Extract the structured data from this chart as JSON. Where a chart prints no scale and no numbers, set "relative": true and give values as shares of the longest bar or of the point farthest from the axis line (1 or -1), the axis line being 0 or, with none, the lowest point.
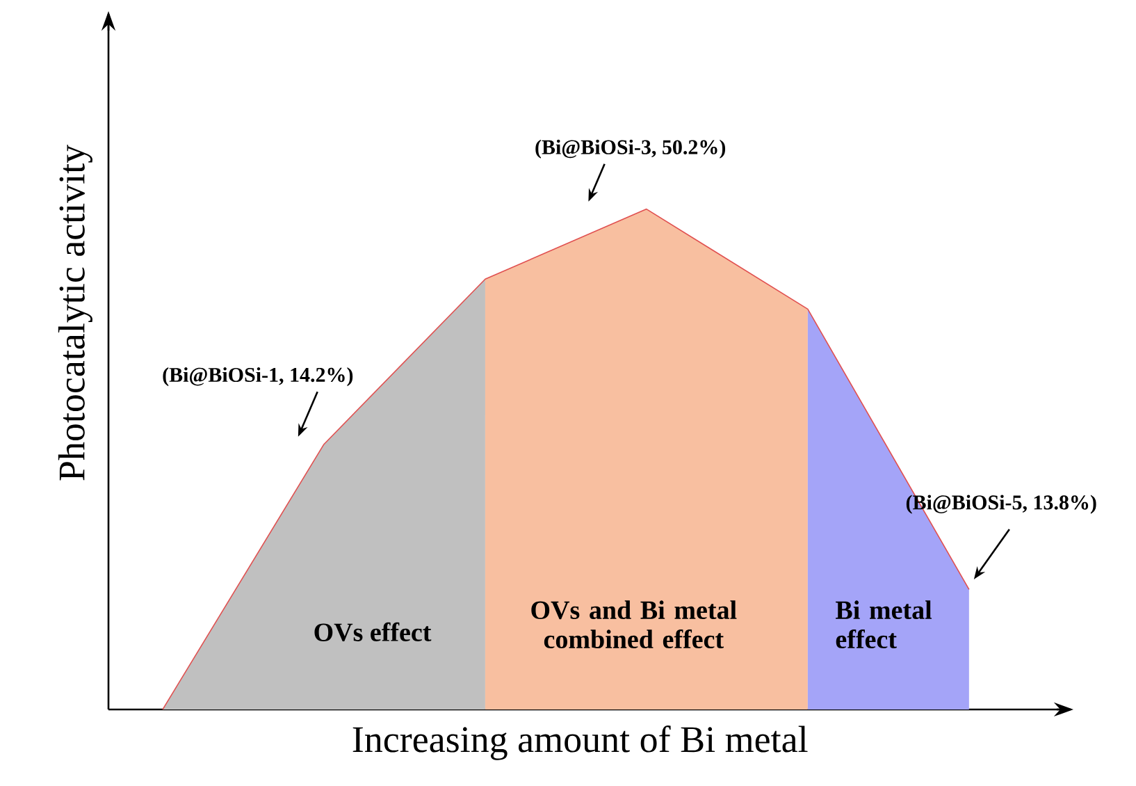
{
  "chart_data": {
    "type": "area",
    "relative": true,
    "xlabel": "Increasing amount of Bi metal",
    "ylabel": "Photocatalytic activity",
    "categories": [
      null,
      null,
      null,
      null,
      null,
      null
    ],
    "series": [
      {
        "color": "#c0c0c0",
        "values": [
          0,
          0.53,
          0.86,
          null,
          null,
          null
        ]
      },
      {
        "color": "#f8bfa0",
        "values": [
          null,
          null,
          0.86,
          1,
          0.8,
          null
        ]
      },
      {
        "color": "#a4a4f8",
        "values": [
          null,
          null,
          null,
          null,
          0.8,
          0.24
        ]
      },
      {
        "type": "line",
        "color": "#e05050",
        "values": [
          0,
          0.53,
          0.86,
          1,
          0.8,
          0.24
        ]
      }
    ],
    "annotations": [
      "(Bi@BiOSi-1, 14.2%)",
      "(Bi@BiOSi-3, 50.2%)",
      "(Bi@BiOSi-5, 13.8%)",
      "OVs effect",
      "OVs and Bi metal combined effect",
      "Bi metal effect"
    ]
  }
}
